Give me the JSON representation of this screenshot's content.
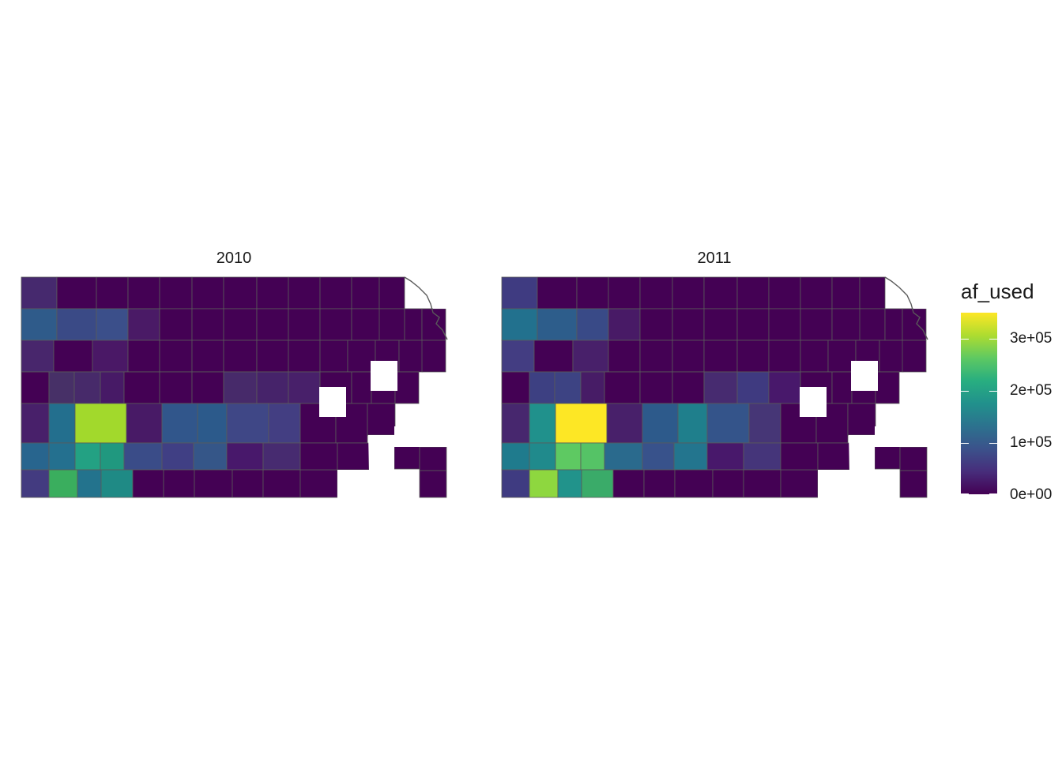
{
  "panels": [
    {
      "title": "2010"
    },
    {
      "title": "2011"
    }
  ],
  "legend": {
    "title": "af_used",
    "max_value": 360000,
    "ticks": [
      {
        "label": "3e+05",
        "value": 300000
      },
      {
        "label": "2e+05",
        "value": 200000
      },
      {
        "label": "1e+05",
        "value": 100000
      },
      {
        "label": "0e+00",
        "value": 0
      }
    ],
    "colormap": "viridis"
  },
  "colors": {
    "border": "#5a5a5a",
    "missing": "#ffffff"
  }
}
